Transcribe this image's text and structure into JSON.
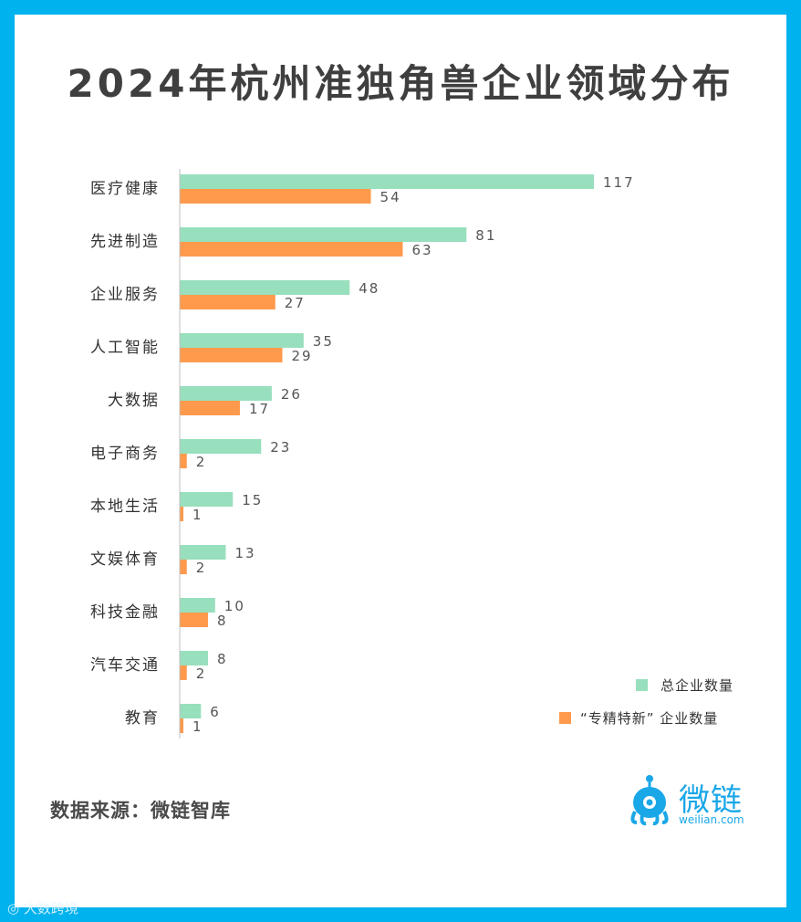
{
  "title": "2024年杭州准独角兽企业领域分布",
  "source": "数据来源：微链智库",
  "logo": {
    "name": "微链",
    "url": "weilian.com"
  },
  "watermark": "大数跨境",
  "colors": {
    "total": "#98dfbd",
    "special": "#ff9a4d",
    "frame": "#00b2ee",
    "axis": "#bfbfbf"
  },
  "chart_data": {
    "type": "bar",
    "orientation": "horizontal",
    "title": "2024年杭州准独角兽企业领域分布",
    "categories": [
      "医疗健康",
      "先进制造",
      "企业服务",
      "人工智能",
      "大数据",
      "电子商务",
      "本地生活",
      "文娱体育",
      "科技金融",
      "汽车交通",
      "教育"
    ],
    "series": [
      {
        "name": "总企业数量",
        "values": [
          117,
          81,
          48,
          35,
          26,
          23,
          15,
          13,
          10,
          8,
          6
        ]
      },
      {
        "name": "“专精特新” 企业数量",
        "values": [
          54,
          63,
          27,
          29,
          17,
          2,
          1,
          2,
          8,
          2,
          1
        ]
      }
    ],
    "xlim": [
      0,
      117
    ],
    "grid": false,
    "legend": "bottom-right"
  }
}
